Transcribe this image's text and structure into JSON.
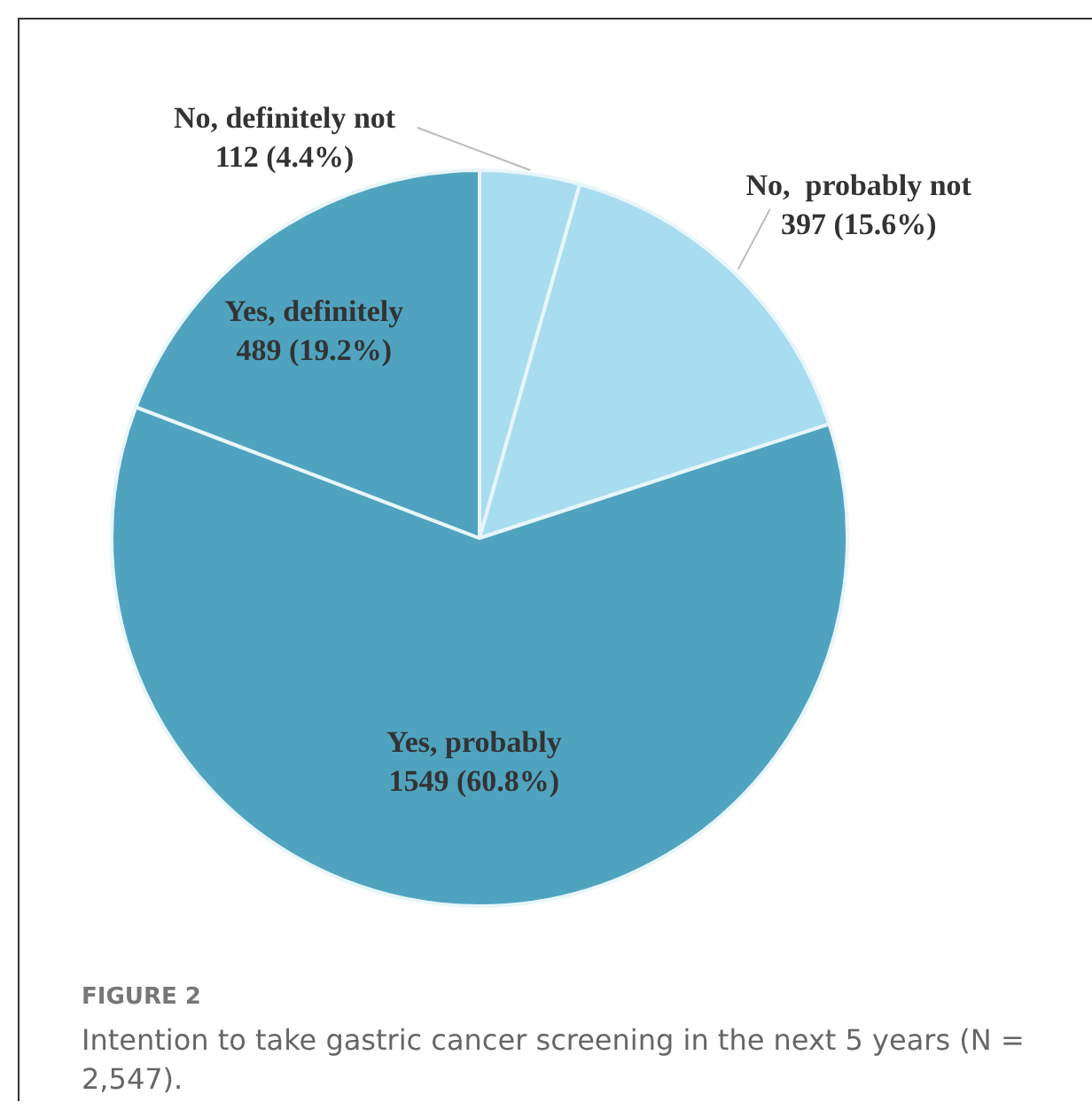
{
  "chart_data": {
    "type": "pie",
    "categories": [
      "No, definitely not",
      "No,  probably not",
      "Yes, probably",
      "Yes, definitely"
    ],
    "values": [
      112,
      397,
      1549,
      489
    ],
    "value_labels": [
      "112 (4.4%)",
      "397 (15.6%)",
      "1549 (60.8%)",
      "489 (19.2%)"
    ],
    "colors": [
      "#a8dcf0",
      "#a8dcf0",
      "#4fa3bf",
      "#4fa3bf"
    ],
    "legend": false,
    "annotations": [
      "FIGURE 2",
      "Intention to take gastric cancer screening in the next 5 years (N = 2,547)."
    ]
  }
}
